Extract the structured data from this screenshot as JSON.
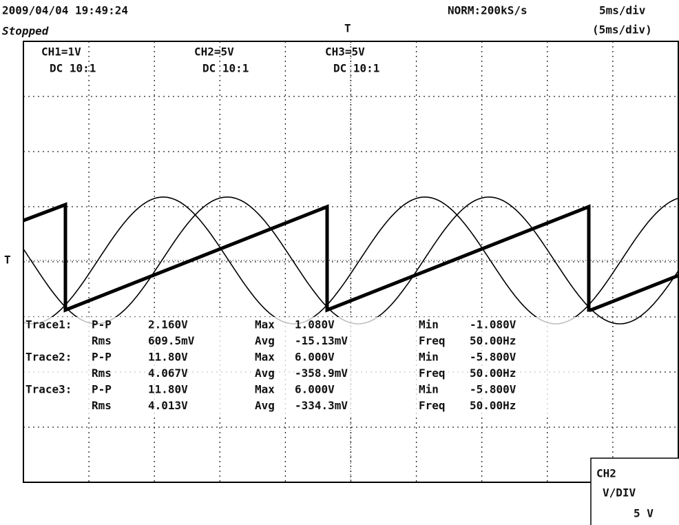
{
  "header": {
    "datetime": "2009/04/04  19:49:24",
    "status": "Stopped",
    "mode": "NORM:200kS/s",
    "timebase": "5ms/div",
    "timebase_actual": "(5ms/div)"
  },
  "channels": [
    {
      "label": "CH1=1V",
      "coupling": "DC  10:1"
    },
    {
      "label": "CH2=5V",
      "coupling": "DC  10:1"
    },
    {
      "label": "CH3=5V",
      "coupling": "DC  10:1"
    }
  ],
  "measurements": [
    [
      "Trace1:",
      "P-P",
      "2.160V",
      "Max",
      "1.080V",
      "Min",
      "-1.080V"
    ],
    [
      "",
      "Rms",
      "609.5mV",
      "Avg",
      "-15.13mV",
      "Freq",
      "50.00Hz"
    ],
    [
      "Trace2:",
      "P-P",
      "11.80V",
      "Max",
      "6.000V",
      "Min",
      "-5.800V"
    ],
    [
      "",
      "Rms",
      "4.067V",
      "Avg",
      "-358.9mV",
      "Freq",
      "50.00Hz"
    ],
    [
      "Trace3:",
      "P-P",
      "11.80V",
      "Max",
      "6.000V",
      "Min",
      "-5.800V"
    ],
    [
      "",
      "Rms",
      "4.013V",
      "Avg",
      "-334.3mV",
      "Freq",
      "50.00Hz"
    ]
  ],
  "panel": {
    "channel": "CH2",
    "label": "V/DIV",
    "value": "5 V"
  }
}
